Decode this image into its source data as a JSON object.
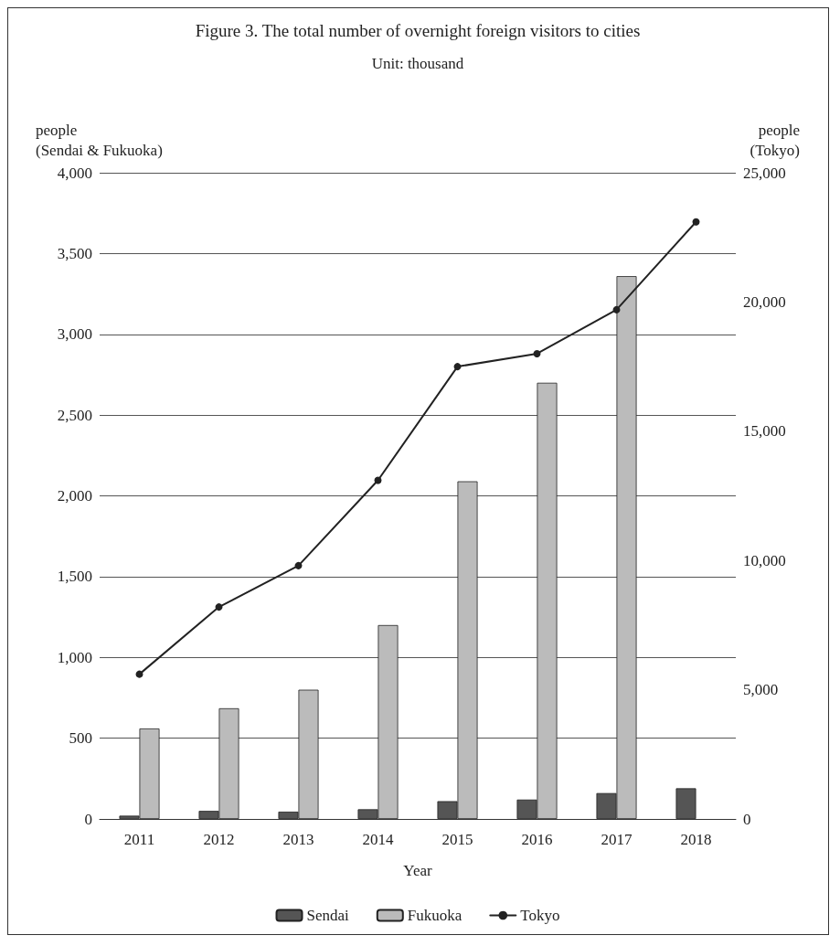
{
  "chart_data": {
    "type": "bar",
    "title": "Figure 3. The total number of overnight foreign visitors to cities",
    "subtitle": "Unit: thousand",
    "ylabel": "people\n(Sendai & Fukuoka)",
    "y2label": "people\n(Tokyo)",
    "xlabel": "Year",
    "categories": [
      "2011",
      "2012",
      "2013",
      "2014",
      "2015",
      "2016",
      "2017",
      "2018"
    ],
    "series": [
      {
        "name": "Sendai",
        "color": "#555555",
        "values": [
          20,
          50,
          45,
          60,
          110,
          120,
          160,
          190
        ]
      },
      {
        "name": "Fukuoka",
        "color": "#bbbbbb",
        "values": [
          560,
          685,
          800,
          1200,
          2090,
          2700,
          3360,
          null
        ]
      },
      {
        "name": "Tokyo",
        "type": "line",
        "axis": "y2",
        "color": "#222222",
        "values": [
          5600,
          8200,
          9800,
          13100,
          17500,
          18000,
          19700,
          23100
        ]
      }
    ],
    "ylim": [
      0,
      4000
    ],
    "yticks": [
      {
        "value": 0,
        "label": "0"
      },
      {
        "value": 500,
        "label": "500"
      },
      {
        "value": 1000,
        "label": "1,000"
      },
      {
        "value": 1500,
        "label": "1,500"
      },
      {
        "value": 2000,
        "label": "2,000"
      },
      {
        "value": 2500,
        "label": "2,500"
      },
      {
        "value": 3000,
        "label": "3,000"
      },
      {
        "value": 3500,
        "label": "3,500"
      },
      {
        "value": 4000,
        "label": "4,000"
      }
    ],
    "y2lim": [
      0,
      25000
    ],
    "y2ticks": [
      {
        "value": 0,
        "label": "0"
      },
      {
        "value": 5000,
        "label": "5,000"
      },
      {
        "value": 10000,
        "label": "10,000"
      },
      {
        "value": 15000,
        "label": "15,000"
      },
      {
        "value": 20000,
        "label": "20,000"
      },
      {
        "value": 25000,
        "label": "25,000"
      }
    ],
    "grid": "y",
    "legend": "bottom",
    "marker": "circle",
    "line_style": "solid"
  }
}
